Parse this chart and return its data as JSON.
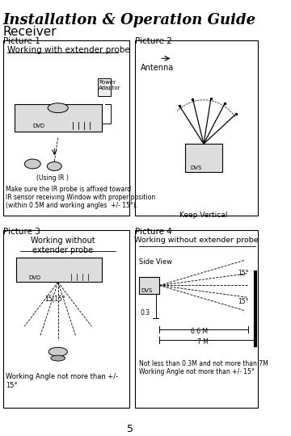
{
  "title": "Installation & Operation Guide",
  "subtitle": "Receiver",
  "bg_color": "#ffffff",
  "text_color": "#000000",
  "pic1_label": "Picture 1",
  "pic2_label": "Picture 2",
  "pic3_label": "Picture 3",
  "pic4_label": "Picture 4",
  "pic1_title": "Working with extender probe",
  "pic2_antenna": "Antenna",
  "pic2_keep": "Keep Vertical",
  "pic2_power": "Power\nAdaptor",
  "pic1_ir": "(Using IR )",
  "pic1_desc1": "Make sure the IR probe is affixed toward",
  "pic1_desc2": "IR sensor receiving Window with proper position",
  "pic1_desc3": "(within 0.5M and working angles  +/- 15°).",
  "pic3_title": "Working without\nextender probe",
  "pic3_desc": "Working Angle not more than +/-\n15°",
  "pic4_title": "Working without extender probe",
  "pic4_sideview": "Side View",
  "pic4_desc1": "Not less than 0.3M and not more than 7M",
  "pic4_desc2": "Working Angle not more than +/- 15°",
  "pic4_03": "0.3",
  "pic4_66": "6.6 M",
  "pic4_7": "7 M",
  "pic4_15a": "15°",
  "pic4_15b": "15°",
  "pic3_15": "15|15°",
  "page_num": "5",
  "box_color": "#000000",
  "gray": "#888888"
}
